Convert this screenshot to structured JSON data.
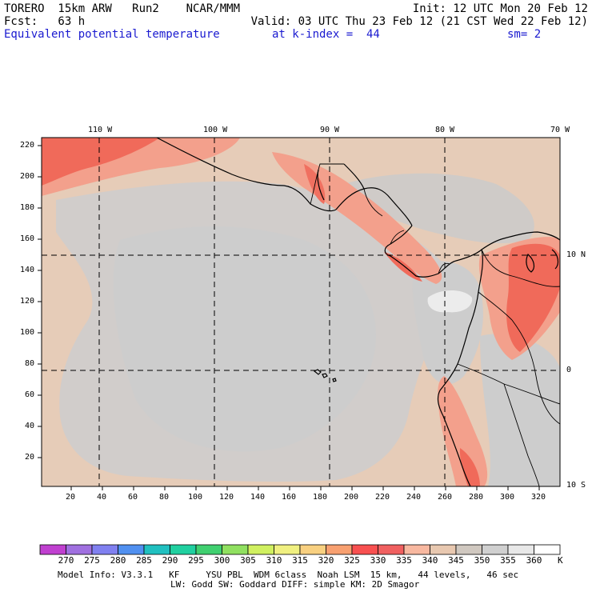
{
  "header": {
    "model": "TORERO  15km ARW   Run2    NCAR/MMM",
    "init": "Init: 12 UTC Mon 20 Feb 12",
    "fcst": "Fcst:   63 h",
    "valid": "Valid: 03 UTC Thu 23 Feb 12 (21 CST Wed 22 Feb 12)",
    "field": "Equivalent potential temperature",
    "level": "at k-index =  44",
    "smooth": "sm= 2"
  },
  "map": {
    "lon_labels": [
      "110 W",
      "100 W",
      "90 W",
      "80 W",
      "70 W"
    ],
    "lat_labels": [
      "10 N",
      "0",
      "10 S"
    ],
    "y_ticks": [
      "220",
      "200",
      "180",
      "160",
      "140",
      "120",
      "100",
      "80",
      "60",
      "40",
      "20"
    ],
    "x_ticks": [
      "20",
      "40",
      "60",
      "80",
      "100",
      "120",
      "140",
      "160",
      "180",
      "200",
      "220",
      "240",
      "260",
      "280",
      "300",
      "320"
    ]
  },
  "colorbar": {
    "labels": [
      "270",
      "275",
      "280",
      "285",
      "290",
      "295",
      "300",
      "305",
      "310",
      "315",
      "320",
      "325",
      "330",
      "335",
      "340",
      "345",
      "350",
      "355",
      "360"
    ],
    "unit": "K",
    "colors": [
      "#c040d0",
      "#a070e0",
      "#8080f0",
      "#5090f0",
      "#20c0c0",
      "#20d0a0",
      "#40d070",
      "#90e060",
      "#d0f060",
      "#f0f080",
      "#f8d080",
      "#f8a070",
      "#f85050",
      "#f06060",
      "#f8b8a0",
      "#e8c8b0",
      "#d0c8c0",
      "#d0d0d0",
      "#e8e8e8",
      "#ffffff"
    ]
  },
  "footer": {
    "line1": "Model Info: V3.3.1   KF     YSU PBL  WDM 6class  Noah LSM  15 km,   44 levels,   46 sec",
    "line2": "LW: Godd SW: Goddard DIFF: simple KM: 2D Smagor"
  }
}
